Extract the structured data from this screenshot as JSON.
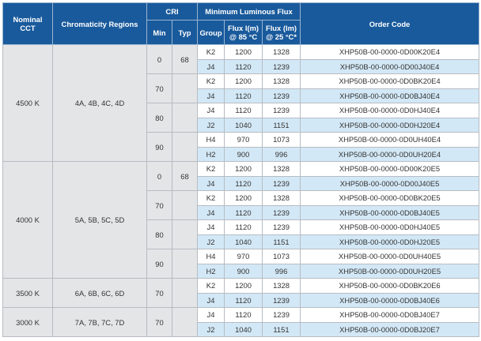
{
  "headers": {
    "nominal_cct": [
      "Nominal",
      "CCT"
    ],
    "chromaticity_regions": "Chromaticity Regions",
    "cri": "CRI",
    "cri_min": "Min",
    "cri_typ": "Typ",
    "min_luminous_flux": "Minimum Luminous Flux",
    "group": "Group",
    "flux_85": [
      "Flux I(m)",
      "@ 85 °C"
    ],
    "flux_25": [
      "Flux (lm)",
      "@ 25 °C*"
    ],
    "order_code": "Order Code"
  },
  "groups": [
    {
      "cct": "4500 K",
      "chroma": "4A, 4B, 4C, 4D",
      "cri": [
        {
          "min": "0",
          "typ": "68",
          "rows": [
            {
              "group": "K2",
              "f85": "1200",
              "f25": "1328",
              "code": "XHP50B-00-0000-0D00K20E4"
            },
            {
              "group": "J4",
              "f85": "1120",
              "f25": "1239",
              "code": "XHP50B-00-0000-0D00J40E4"
            }
          ]
        },
        {
          "min": "70",
          "typ": "",
          "rows": [
            {
              "group": "K2",
              "f85": "1200",
              "f25": "1328",
              "code": "XHP50B-00-0000-0D0BK20E4"
            },
            {
              "group": "J4",
              "f85": "1120",
              "f25": "1239",
              "code": "XHP50B-00-0000-0D0BJ40E4"
            }
          ]
        },
        {
          "min": "80",
          "typ": "",
          "rows": [
            {
              "group": "J4",
              "f85": "1120",
              "f25": "1239",
              "code": "XHP50B-00-0000-0D0HJ40E4"
            },
            {
              "group": "J2",
              "f85": "1040",
              "f25": "1151",
              "code": "XHP50B-00-0000-0D0HJ20E4"
            }
          ]
        },
        {
          "min": "90",
          "typ": "",
          "rows": [
            {
              "group": "H4",
              "f85": "970",
              "f25": "1073",
              "code": "XHP50B-00-0000-0D0UH40E4"
            },
            {
              "group": "H2",
              "f85": "900",
              "f25": "996",
              "code": "XHP50B-00-0000-0D0UH20E4"
            }
          ]
        }
      ]
    },
    {
      "cct": "4000 K",
      "chroma": "5A, 5B, 5C, 5D",
      "cri": [
        {
          "min": "0",
          "typ": "68",
          "rows": [
            {
              "group": "K2",
              "f85": "1200",
              "f25": "1328",
              "code": "XHP50B-00-0000-0D00K20E5"
            },
            {
              "group": "J4",
              "f85": "1120",
              "f25": "1239",
              "code": "XHP50B-00-0000-0D00J40E5"
            }
          ]
        },
        {
          "min": "70",
          "typ": "",
          "rows": [
            {
              "group": "K2",
              "f85": "1200",
              "f25": "1328",
              "code": "XHP50B-00-0000-0D0BK20E5"
            },
            {
              "group": "J4",
              "f85": "1120",
              "f25": "1239",
              "code": "XHP50B-00-0000-0D0BJ40E5"
            }
          ]
        },
        {
          "min": "80",
          "typ": "",
          "rows": [
            {
              "group": "J4",
              "f85": "1120",
              "f25": "1239",
              "code": "XHP50B-00-0000-0D0HJ40E5"
            },
            {
              "group": "J2",
              "f85": "1040",
              "f25": "1151",
              "code": "XHP50B-00-0000-0D0HJ20E5"
            }
          ]
        },
        {
          "min": "90",
          "typ": "",
          "rows": [
            {
              "group": "H4",
              "f85": "970",
              "f25": "1073",
              "code": "XHP50B-00-0000-0D0UH40E5"
            },
            {
              "group": "H2",
              "f85": "900",
              "f25": "996",
              "code": "XHP50B-00-0000-0D0UH20E5"
            }
          ]
        }
      ]
    },
    {
      "cct": "3500 K",
      "chroma": "6A, 6B, 6C, 6D",
      "cri": [
        {
          "min": "70",
          "typ": "",
          "rows": [
            {
              "group": "K2",
              "f85": "1200",
              "f25": "1328",
              "code": "XHP50B-00-0000-0D0BK20E6"
            },
            {
              "group": "J4",
              "f85": "1120",
              "f25": "1239",
              "code": "XHP50B-00-0000-0D0BJ40E6"
            }
          ]
        }
      ]
    },
    {
      "cct": "3000 K",
      "chroma": "7A, 7B, 7C, 7D",
      "cri": [
        {
          "min": "70",
          "typ": "",
          "rows": [
            {
              "group": "J4",
              "f85": "1120",
              "f25": "1239",
              "code": "XHP50B-00-0000-0D0BJ40E7"
            },
            {
              "group": "J2",
              "f85": "1040",
              "f25": "1151",
              "code": "XHP50B-00-0000-0D0BJ20E7"
            }
          ]
        }
      ]
    }
  ],
  "colors": {
    "header_bg": "#195a9c",
    "grey_cell": "#e4e5e6",
    "blue_row": "#d3e8f6",
    "border": "#b6bcc3"
  }
}
